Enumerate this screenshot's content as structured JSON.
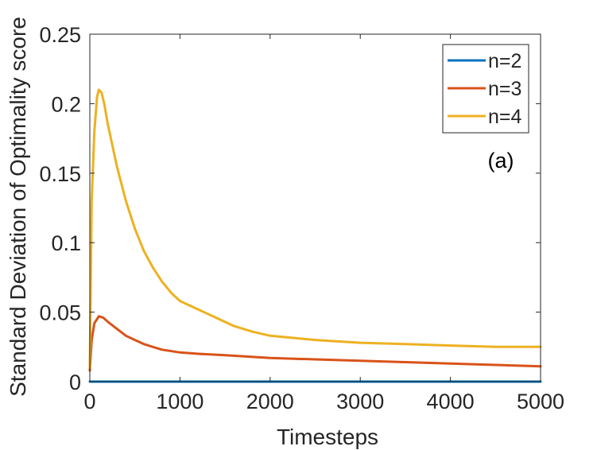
{
  "chart_data": {
    "type": "line",
    "title": "",
    "xlabel": "Timesteps",
    "ylabel": "Standard Deviation of Optimality score",
    "xlim": [
      0,
      5000
    ],
    "ylim": [
      0,
      0.25
    ],
    "x_ticks": [
      0,
      1000,
      2000,
      3000,
      4000,
      5000
    ],
    "x_tick_labels": [
      "0",
      "1000",
      "2000",
      "3000",
      "4000",
      "5000"
    ],
    "y_ticks": [
      0,
      0.05,
      0.1,
      0.15,
      0.2,
      0.25
    ],
    "y_tick_labels": [
      "0",
      "0.05",
      "0.1",
      "0.15",
      "0.2",
      "0.25"
    ],
    "grid": false,
    "legend_position": "top-right",
    "annotation": "(a)",
    "series": [
      {
        "name": "n=2",
        "color": "#0072BD",
        "x": [
          0,
          1000,
          2000,
          3000,
          4000,
          5000
        ],
        "y": [
          0,
          0,
          0,
          0,
          0,
          0
        ]
      },
      {
        "name": "n=3",
        "color": "#D95319",
        "x": [
          0,
          20,
          50,
          100,
          150,
          200,
          300,
          400,
          500,
          600,
          800,
          1000,
          1200,
          1500,
          2000,
          2500,
          3000,
          3500,
          4000,
          4500,
          5000
        ],
        "y": [
          0.008,
          0.03,
          0.042,
          0.047,
          0.046,
          0.043,
          0.038,
          0.033,
          0.03,
          0.027,
          0.023,
          0.021,
          0.02,
          0.019,
          0.017,
          0.016,
          0.015,
          0.014,
          0.013,
          0.012,
          0.011
        ]
      },
      {
        "name": "n=4",
        "color": "#EDB120",
        "x": [
          0,
          20,
          50,
          80,
          100,
          130,
          160,
          200,
          300,
          400,
          500,
          600,
          700,
          800,
          900,
          1000,
          1200,
          1400,
          1600,
          1800,
          2000,
          2500,
          3000,
          3500,
          4000,
          4500,
          5000
        ],
        "y": [
          0.01,
          0.13,
          0.18,
          0.205,
          0.21,
          0.208,
          0.2,
          0.185,
          0.155,
          0.13,
          0.11,
          0.094,
          0.082,
          0.072,
          0.064,
          0.058,
          0.052,
          0.046,
          0.04,
          0.036,
          0.033,
          0.03,
          0.028,
          0.027,
          0.026,
          0.025,
          0.025
        ]
      }
    ]
  }
}
